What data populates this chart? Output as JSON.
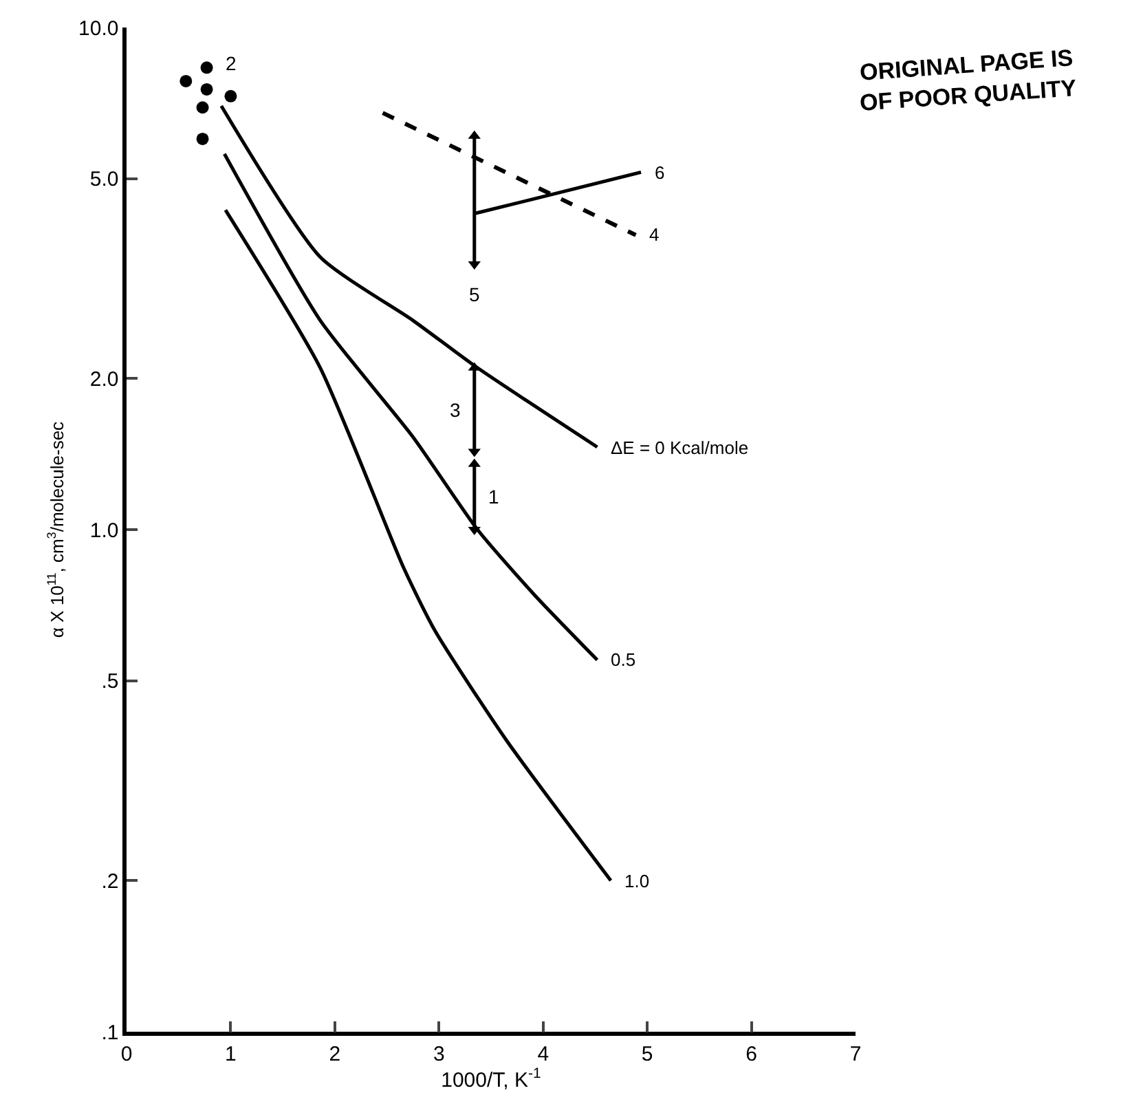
{
  "chart_data": {
    "type": "line",
    "xlabel": "1000/T, K$^{-1}$",
    "ylabel": "α X 10$^{11}$, cm$^{3}$/molecule-sec",
    "log": "y",
    "xlim": [
      0,
      7
    ],
    "ylim": [
      0.1,
      10
    ],
    "xticks": [
      0,
      1,
      2,
      3,
      4,
      5,
      6,
      7
    ],
    "yticks": [
      {
        "value": 0.1,
        "label": ".1"
      },
      {
        "value": 0.2,
        "label": ".2"
      },
      {
        "value": 0.5,
        "label": ".5"
      },
      {
        "value": 1,
        "label": "1.0"
      },
      {
        "value": 2,
        "label": "2.0"
      },
      {
        "value": 5,
        "label": "5.0"
      },
      {
        "value": 10,
        "label": "10.0"
      }
    ],
    "grid": false,
    "series": [
      {
        "name": "ΔE = 0 Kcal/mole",
        "color": "#000000",
        "x": [
          0.91,
          1.86,
          2.75,
          3.37,
          4.52
        ],
        "values": [
          6.98,
          3.49,
          2.61,
          2.1,
          1.46
        ],
        "line_style": "solid"
      },
      {
        "name": "0.5",
        "color": "#000000",
        "x": [
          0.94,
          1.86,
          2.75,
          3.37,
          3.92,
          4.52
        ],
        "values": [
          5.6,
          2.61,
          1.53,
          1.0,
          0.74,
          0.55
        ],
        "line_style": "solid"
      },
      {
        "name": "1.0",
        "color": "#000000",
        "x": [
          0.95,
          1.86,
          2.66,
          2.96,
          3.65,
          4.65
        ],
        "values": [
          4.33,
          2.1,
          0.84,
          0.63,
          0.38,
          0.2
        ],
        "line_style": "solid"
      },
      {
        "name": "4",
        "color": "#000000",
        "x": [
          2.46,
          4.89
        ],
        "values": [
          6.76,
          3.86
        ],
        "line_style": "dashed"
      },
      {
        "name": "6",
        "color": "#000000",
        "x": [
          3.34,
          3.9,
          4.94
        ],
        "values": [
          4.26,
          4.55,
          5.15
        ],
        "line_style": "solid"
      },
      {
        "name": "2",
        "type": "scatter",
        "color": "#000000",
        "marker": "circle",
        "x": [
          0.57,
          0.77,
          0.77,
          1.0,
          0.73,
          0.73
        ],
        "values": [
          7.82,
          8.32,
          7.53,
          7.3,
          6.93,
          6.0
        ]
      },
      {
        "name": "5",
        "color": "#000000",
        "marker": "triangle",
        "x": [
          3.34,
          3.34
        ],
        "values": [
          3.38,
          6.08
        ],
        "line_style": "solid"
      },
      {
        "name": "3",
        "color": "#000000",
        "marker": "triangle",
        "x": [
          3.34,
          3.34
        ],
        "values": [
          1.43,
          2.1
        ],
        "line_style": "solid"
      },
      {
        "name": "1",
        "color": "#000000",
        "marker": "triangle",
        "x": [
          3.34,
          3.34
        ],
        "values": [
          1.0,
          1.35
        ],
        "line_style": "solid"
      }
    ],
    "annotations": [
      "ORIGINAL PAGE IS",
      "OF POOR QUALITY"
    ]
  }
}
